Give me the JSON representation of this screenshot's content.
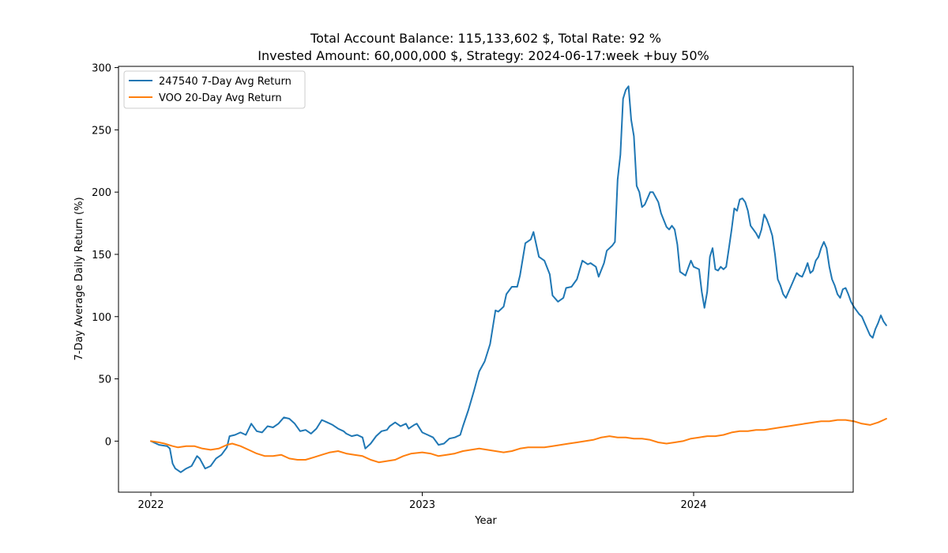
{
  "chart_data": {
    "type": "line",
    "title": "Total Account Balance: 115,133,602 $, Total Rate: 92 %",
    "subtitle": "Invested Amount: 60,000,000 $, Strategy: 2024-06-17:week +buy 50%",
    "xlabel": "Year",
    "ylabel": "7-Day Average Daily Return (%)",
    "xlim": [
      2021.88,
      2024.59
    ],
    "ylim": [
      -41,
      301
    ],
    "xticks": [
      {
        "value": 2022,
        "label": "2022"
      },
      {
        "value": 2023,
        "label": "2023"
      },
      {
        "value": 2024,
        "label": "2024"
      }
    ],
    "yticks": [
      {
        "value": 0,
        "label": "0"
      },
      {
        "value": 50,
        "label": "50"
      },
      {
        "value": 100,
        "label": "100"
      },
      {
        "value": 150,
        "label": "150"
      },
      {
        "value": 200,
        "label": "200"
      },
      {
        "value": 250,
        "label": "250"
      },
      {
        "value": 300,
        "label": "300"
      }
    ],
    "grid": false,
    "legend_position": "top-left",
    "series": [
      {
        "name": "247540 7-Day Avg Return",
        "color": "#1f77b4",
        "points": [
          [
            2022.0,
            0
          ],
          [
            2022.03,
            -3
          ],
          [
            2022.06,
            -4
          ],
          [
            2022.07,
            -6
          ],
          [
            2022.08,
            -18
          ],
          [
            2022.09,
            -22
          ],
          [
            2022.11,
            -25
          ],
          [
            2022.13,
            -22
          ],
          [
            2022.15,
            -20
          ],
          [
            2022.17,
            -12
          ],
          [
            2022.18,
            -14
          ],
          [
            2022.2,
            -22
          ],
          [
            2022.22,
            -20
          ],
          [
            2022.24,
            -14
          ],
          [
            2022.26,
            -11
          ],
          [
            2022.28,
            -5
          ],
          [
            2022.29,
            4
          ],
          [
            2022.31,
            5
          ],
          [
            2022.33,
            7
          ],
          [
            2022.35,
            5
          ],
          [
            2022.37,
            14
          ],
          [
            2022.39,
            8
          ],
          [
            2022.41,
            7
          ],
          [
            2022.43,
            12
          ],
          [
            2022.45,
            11
          ],
          [
            2022.47,
            14
          ],
          [
            2022.49,
            19
          ],
          [
            2022.51,
            18
          ],
          [
            2022.53,
            14
          ],
          [
            2022.55,
            8
          ],
          [
            2022.57,
            9
          ],
          [
            2022.59,
            6
          ],
          [
            2022.61,
            10
          ],
          [
            2022.63,
            17
          ],
          [
            2022.65,
            15
          ],
          [
            2022.67,
            13
          ],
          [
            2022.69,
            10
          ],
          [
            2022.71,
            8
          ],
          [
            2022.72,
            6
          ],
          [
            2022.74,
            4
          ],
          [
            2022.76,
            5
          ],
          [
            2022.78,
            3
          ],
          [
            2022.79,
            -6
          ],
          [
            2022.81,
            -2
          ],
          [
            2022.83,
            4
          ],
          [
            2022.85,
            8
          ],
          [
            2022.87,
            9
          ],
          [
            2022.88,
            12
          ],
          [
            2022.9,
            15
          ],
          [
            2022.92,
            12
          ],
          [
            2022.94,
            14
          ],
          [
            2022.95,
            10
          ],
          [
            2022.97,
            13
          ],
          [
            2022.98,
            14
          ],
          [
            2023.0,
            7
          ],
          [
            2023.02,
            5
          ],
          [
            2023.04,
            3
          ],
          [
            2023.06,
            -3
          ],
          [
            2023.08,
            -2
          ],
          [
            2023.1,
            2
          ],
          [
            2023.12,
            3
          ],
          [
            2023.14,
            5
          ],
          [
            2023.15,
            12
          ],
          [
            2023.17,
            25
          ],
          [
            2023.19,
            40
          ],
          [
            2023.21,
            56
          ],
          [
            2023.23,
            64
          ],
          [
            2023.25,
            78
          ],
          [
            2023.27,
            105
          ],
          [
            2023.28,
            104
          ],
          [
            2023.3,
            108
          ],
          [
            2023.31,
            118
          ],
          [
            2023.33,
            124
          ],
          [
            2023.35,
            124
          ],
          [
            2023.36,
            133
          ],
          [
            2023.38,
            159
          ],
          [
            2023.4,
            162
          ],
          [
            2023.41,
            168
          ],
          [
            2023.43,
            148
          ],
          [
            2023.45,
            145
          ],
          [
            2023.47,
            134
          ],
          [
            2023.48,
            117
          ],
          [
            2023.5,
            112
          ],
          [
            2023.52,
            115
          ],
          [
            2023.53,
            123
          ],
          [
            2023.55,
            124
          ],
          [
            2023.57,
            130
          ],
          [
            2023.59,
            145
          ],
          [
            2023.61,
            142
          ],
          [
            2023.62,
            143
          ],
          [
            2023.64,
            140
          ],
          [
            2023.65,
            132
          ],
          [
            2023.67,
            143
          ],
          [
            2023.68,
            153
          ],
          [
            2023.7,
            157
          ],
          [
            2023.71,
            160
          ],
          [
            2023.72,
            210
          ],
          [
            2023.73,
            230
          ],
          [
            2023.74,
            275
          ],
          [
            2023.75,
            282
          ],
          [
            2023.76,
            285
          ],
          [
            2023.77,
            258
          ],
          [
            2023.78,
            245
          ],
          [
            2023.79,
            205
          ],
          [
            2023.8,
            200
          ],
          [
            2023.81,
            188
          ],
          [
            2023.82,
            190
          ],
          [
            2023.84,
            200
          ],
          [
            2023.85,
            200
          ],
          [
            2023.87,
            192
          ],
          [
            2023.88,
            183
          ],
          [
            2023.9,
            172
          ],
          [
            2023.91,
            170
          ],
          [
            2023.92,
            173
          ],
          [
            2023.93,
            170
          ],
          [
            2023.94,
            158
          ],
          [
            2023.95,
            136
          ],
          [
            2023.97,
            133
          ],
          [
            2023.98,
            139
          ],
          [
            2023.99,
            145
          ],
          [
            2024.0,
            140
          ],
          [
            2024.02,
            138
          ],
          [
            2024.03,
            120
          ],
          [
            2024.04,
            107
          ],
          [
            2024.05,
            120
          ],
          [
            2024.06,
            148
          ],
          [
            2024.07,
            155
          ],
          [
            2024.08,
            138
          ],
          [
            2024.09,
            137
          ],
          [
            2024.1,
            140
          ],
          [
            2024.11,
            138
          ],
          [
            2024.12,
            140
          ],
          [
            2024.13,
            155
          ],
          [
            2024.14,
            170
          ],
          [
            2024.15,
            187
          ],
          [
            2024.16,
            185
          ],
          [
            2024.17,
            194
          ],
          [
            2024.18,
            195
          ],
          [
            2024.19,
            192
          ],
          [
            2024.2,
            185
          ],
          [
            2024.21,
            173
          ],
          [
            2024.22,
            170
          ],
          [
            2024.23,
            167
          ],
          [
            2024.24,
            163
          ],
          [
            2024.25,
            170
          ],
          [
            2024.26,
            182
          ],
          [
            2024.27,
            178
          ],
          [
            2024.28,
            172
          ],
          [
            2024.29,
            165
          ],
          [
            2024.3,
            150
          ],
          [
            2024.31,
            130
          ],
          [
            2024.32,
            125
          ],
          [
            2024.33,
            118
          ],
          [
            2024.34,
            115
          ],
          [
            2024.35,
            120
          ],
          [
            2024.36,
            125
          ],
          [
            2024.37,
            130
          ],
          [
            2024.38,
            135
          ],
          [
            2024.39,
            133
          ],
          [
            2024.4,
            132
          ],
          [
            2024.41,
            137
          ],
          [
            2024.42,
            143
          ],
          [
            2024.43,
            135
          ],
          [
            2024.44,
            137
          ],
          [
            2024.45,
            145
          ],
          [
            2024.46,
            148
          ],
          [
            2024.47,
            155
          ],
          [
            2024.48,
            160
          ],
          [
            2024.49,
            155
          ],
          [
            2024.5,
            140
          ],
          [
            2024.51,
            130
          ],
          [
            2024.52,
            125
          ],
          [
            2024.53,
            118
          ],
          [
            2024.54,
            115
          ],
          [
            2024.55,
            122
          ],
          [
            2024.56,
            123
          ],
          [
            2024.57,
            118
          ],
          [
            2024.58,
            112
          ],
          [
            2024.59,
            108
          ],
          [
            2024.6,
            105
          ],
          [
            2024.61,
            102
          ],
          [
            2024.62,
            100
          ],
          [
            2024.63,
            95
          ],
          [
            2024.64,
            90
          ],
          [
            2024.65,
            85
          ],
          [
            2024.66,
            83
          ],
          [
            2024.67,
            90
          ],
          [
            2024.68,
            95
          ],
          [
            2024.69,
            101
          ],
          [
            2024.7,
            96
          ],
          [
            2024.71,
            93
          ]
        ]
      },
      {
        "name": "VOO 20-Day Avg Return",
        "color": "#ff7f0e",
        "points": [
          [
            2022.0,
            0
          ],
          [
            2022.03,
            -1
          ],
          [
            2022.05,
            -2
          ],
          [
            2022.08,
            -4
          ],
          [
            2022.1,
            -5
          ],
          [
            2022.13,
            -4
          ],
          [
            2022.16,
            -4
          ],
          [
            2022.19,
            -6
          ],
          [
            2022.22,
            -7
          ],
          [
            2022.25,
            -6
          ],
          [
            2022.28,
            -3
          ],
          [
            2022.3,
            -2
          ],
          [
            2022.33,
            -4
          ],
          [
            2022.36,
            -7
          ],
          [
            2022.39,
            -10
          ],
          [
            2022.42,
            -12
          ],
          [
            2022.45,
            -12
          ],
          [
            2022.48,
            -11
          ],
          [
            2022.51,
            -14
          ],
          [
            2022.54,
            -15
          ],
          [
            2022.57,
            -15
          ],
          [
            2022.6,
            -13
          ],
          [
            2022.63,
            -11
          ],
          [
            2022.66,
            -9
          ],
          [
            2022.69,
            -8
          ],
          [
            2022.72,
            -10
          ],
          [
            2022.75,
            -11
          ],
          [
            2022.78,
            -12
          ],
          [
            2022.81,
            -15
          ],
          [
            2022.84,
            -17
          ],
          [
            2022.87,
            -16
          ],
          [
            2022.9,
            -15
          ],
          [
            2022.93,
            -12
          ],
          [
            2022.96,
            -10
          ],
          [
            2023.0,
            -9
          ],
          [
            2023.03,
            -10
          ],
          [
            2023.06,
            -12
          ],
          [
            2023.09,
            -11
          ],
          [
            2023.12,
            -10
          ],
          [
            2023.15,
            -8
          ],
          [
            2023.18,
            -7
          ],
          [
            2023.21,
            -6
          ],
          [
            2023.24,
            -7
          ],
          [
            2023.27,
            -8
          ],
          [
            2023.3,
            -9
          ],
          [
            2023.33,
            -8
          ],
          [
            2023.36,
            -6
          ],
          [
            2023.39,
            -5
          ],
          [
            2023.42,
            -5
          ],
          [
            2023.45,
            -5
          ],
          [
            2023.48,
            -4
          ],
          [
            2023.51,
            -3
          ],
          [
            2023.54,
            -2
          ],
          [
            2023.57,
            -1
          ],
          [
            2023.6,
            0
          ],
          [
            2023.63,
            1
          ],
          [
            2023.66,
            3
          ],
          [
            2023.69,
            4
          ],
          [
            2023.72,
            3
          ],
          [
            2023.75,
            3
          ],
          [
            2023.78,
            2
          ],
          [
            2023.81,
            2
          ],
          [
            2023.84,
            1
          ],
          [
            2023.87,
            -1
          ],
          [
            2023.9,
            -2
          ],
          [
            2023.93,
            -1
          ],
          [
            2023.96,
            0
          ],
          [
            2023.99,
            2
          ],
          [
            2024.02,
            3
          ],
          [
            2024.05,
            4
          ],
          [
            2024.08,
            4
          ],
          [
            2024.11,
            5
          ],
          [
            2024.14,
            7
          ],
          [
            2024.17,
            8
          ],
          [
            2024.2,
            8
          ],
          [
            2024.23,
            9
          ],
          [
            2024.26,
            9
          ],
          [
            2024.29,
            10
          ],
          [
            2024.32,
            11
          ],
          [
            2024.35,
            12
          ],
          [
            2024.38,
            13
          ],
          [
            2024.41,
            14
          ],
          [
            2024.44,
            15
          ],
          [
            2024.47,
            16
          ],
          [
            2024.5,
            16
          ],
          [
            2024.53,
            17
          ],
          [
            2024.56,
            17
          ],
          [
            2024.59,
            16
          ],
          [
            2024.62,
            14
          ],
          [
            2024.65,
            13
          ],
          [
            2024.68,
            15
          ],
          [
            2024.7,
            17
          ],
          [
            2024.71,
            18
          ]
        ]
      }
    ]
  }
}
